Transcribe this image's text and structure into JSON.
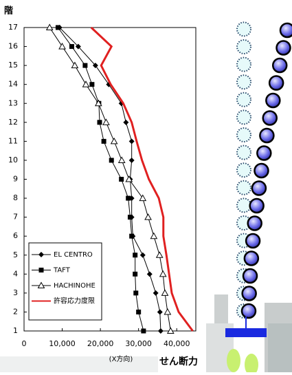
{
  "chart_data": {
    "type": "line",
    "y_axis_label": "階",
    "x_axis_label": "(X方向)",
    "caption": "せん断力",
    "y": [
      1,
      2,
      3,
      4,
      5,
      6,
      7,
      8,
      9,
      10,
      11,
      12,
      13,
      14,
      15,
      16,
      17
    ],
    "series": [
      {
        "name": "EL CENTRO",
        "color": "#000000",
        "marker": "diamond",
        "values": [
          35800,
          35600,
          34500,
          32900,
          31100,
          28500,
          28200,
          28200,
          27800,
          28200,
          28200,
          26700,
          25500,
          22200,
          18700,
          14200,
          9300
        ]
      },
      {
        "name": "TAFT",
        "color": "#000000",
        "marker": "square",
        "values": [
          31300,
          30000,
          29300,
          29100,
          29100,
          28200,
          27800,
          27300,
          25500,
          22900,
          20900,
          19800,
          19600,
          17800,
          16000,
          12500,
          8900
        ]
      },
      {
        "name": "HACHINOHE",
        "color": "#000000",
        "marker": "triangle",
        "values": [
          38400,
          37600,
          36900,
          36400,
          35500,
          34000,
          32500,
          31100,
          27500,
          25600,
          23600,
          21500,
          19500,
          16200,
          13300,
          10000,
          6700
        ]
      },
      {
        "name": "許容応力度限",
        "color": "#e02020",
        "marker": "none",
        "values": [
          44200,
          40500,
          38700,
          38000,
          37300,
          36500,
          36500,
          35300,
          32700,
          30900,
          29500,
          28200,
          26000,
          22700,
          20200,
          22900,
          17600
        ]
      }
    ],
    "xlim": [
      0,
      45000
    ],
    "xticks": [
      0,
      {
        "value": 10000,
        "label": "10,000"
      },
      {
        "value": 20000,
        "label": "20,000"
      },
      {
        "value": 30000,
        "label": "30,000"
      },
      {
        "value": 40000,
        "label": "40,000"
      }
    ],
    "ylim": [
      1,
      17
    ],
    "yticks": [
      1,
      2,
      3,
      4,
      5,
      6,
      7,
      8,
      9,
      10,
      11,
      12,
      13,
      14,
      15,
      16,
      17
    ],
    "legend": "lower left"
  }
}
